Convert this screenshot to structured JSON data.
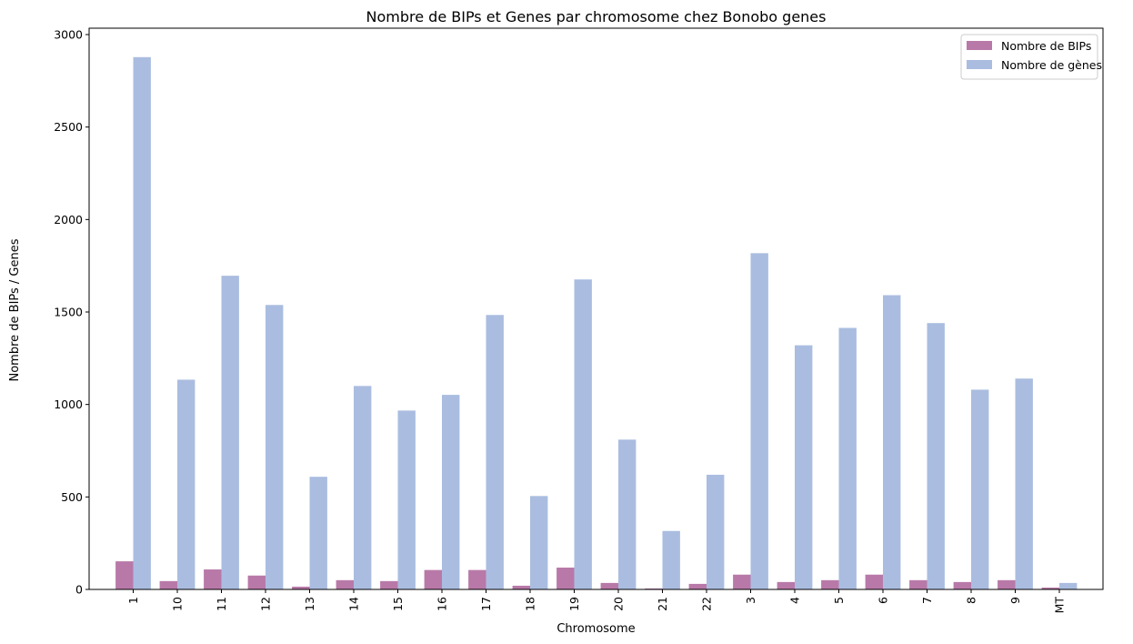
{
  "chart_data": {
    "type": "bar",
    "title": "Nombre de BIPs et Genes par chromosome chez Bonobo genes",
    "xlabel": "Chromosome",
    "ylabel": "Nombre de BIPs / Genes",
    "ylim": [
      0,
      3000
    ],
    "yticks": [
      0,
      500,
      1000,
      1500,
      2000,
      2500,
      3000
    ],
    "grid": false,
    "legend_position": "top-right",
    "categories": [
      "1",
      "10",
      "11",
      "12",
      "13",
      "14",
      "15",
      "16",
      "17",
      "18",
      "19",
      "20",
      "21",
      "22",
      "3",
      "4",
      "5",
      "6",
      "7",
      "8",
      "9",
      "MT"
    ],
    "series": [
      {
        "name": "Nombre de BIPs",
        "color": "#b879a8",
        "values": [
          152,
          45,
          108,
          75,
          15,
          50,
          45,
          105,
          105,
          20,
          118,
          35,
          5,
          30,
          80,
          40,
          50,
          80,
          50,
          40,
          50,
          10
        ]
      },
      {
        "name": "Nombre de gènes",
        "color": "#aabde0",
        "values": [
          2878,
          1134,
          1696,
          1538,
          609,
          1100,
          967,
          1052,
          1484,
          505,
          1676,
          810,
          316,
          620,
          1818,
          1320,
          1414,
          1591,
          1440,
          1080,
          1140,
          35
        ]
      }
    ]
  }
}
